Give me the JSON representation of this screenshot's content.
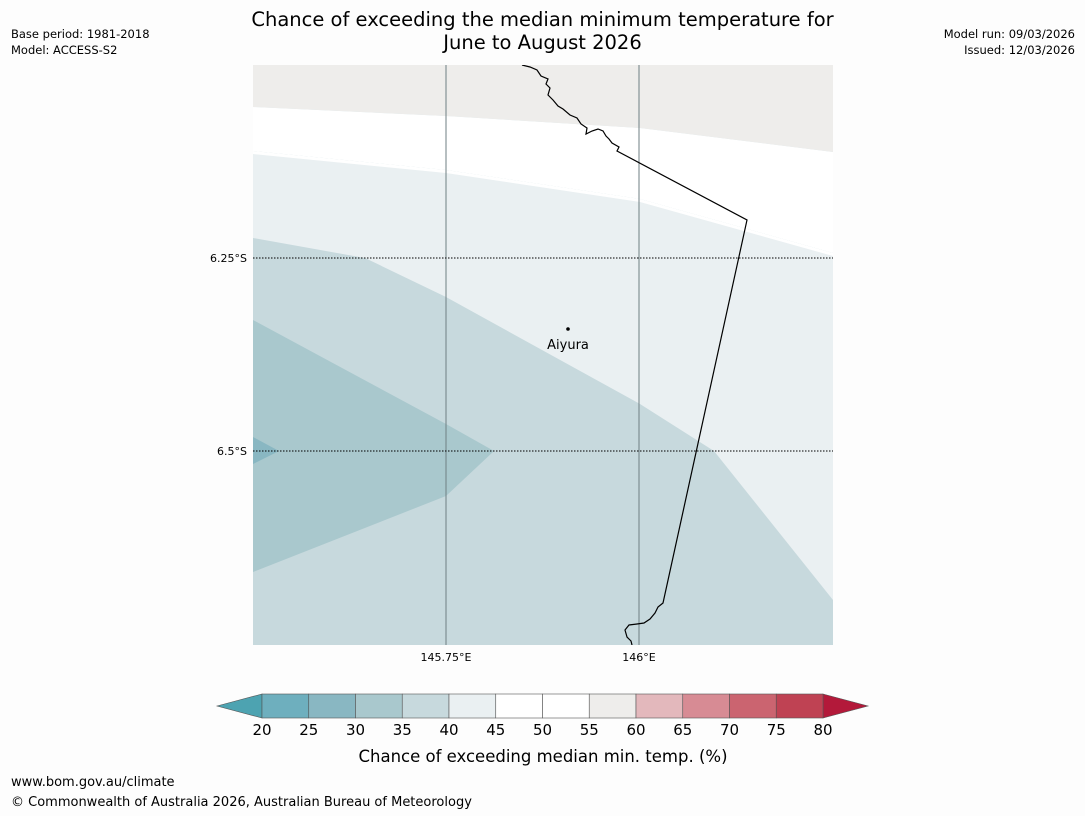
{
  "title": {
    "line1": "Chance of exceeding the median minimum temperature for",
    "line2": "June to August 2026"
  },
  "meta_left": {
    "base_period": "Base period: 1981-2018",
    "model": "Model: ACCESS-S2"
  },
  "meta_right": {
    "model_run": "Model run: 09/03/2026",
    "issued": "Issued: 12/03/2026"
  },
  "map": {
    "place_label": "Aiyura",
    "lat_labels": [
      "6.25°S",
      "6.5°S"
    ],
    "lon_labels": [
      "145.75°E",
      "146°E"
    ],
    "fill_colors": {
      "band_55_60": "#eeedeb",
      "band_45_55": "#ffffff",
      "band_40_45": "#eaf0f2",
      "band_35_40": "#c7d9dd",
      "band_30_35": "#a9c8cd",
      "band_25_30": "#89b7c2"
    }
  },
  "colorbar": {
    "tick_labels": [
      "20",
      "25",
      "30",
      "35",
      "40",
      "45",
      "50",
      "55",
      "60",
      "65",
      "70",
      "75",
      "80"
    ],
    "segment_colors": [
      "#6eafbe",
      "#89b7c2",
      "#a9c8cd",
      "#c7d9dd",
      "#eaf0f2",
      "#ffffff",
      "#ffffff",
      "#eeedeb",
      "#e3b8bc",
      "#d78b94",
      "#cb6470",
      "#bf4253"
    ],
    "under_color": "#4da3b1",
    "over_color": "#b3193a",
    "label": "Chance of exceeding median min. temp. (%)"
  },
  "footer": {
    "url": "www.bom.gov.au/climate",
    "copyright": "© Commonwealth of Australia 2026, Australian Bureau of Meteorology"
  }
}
